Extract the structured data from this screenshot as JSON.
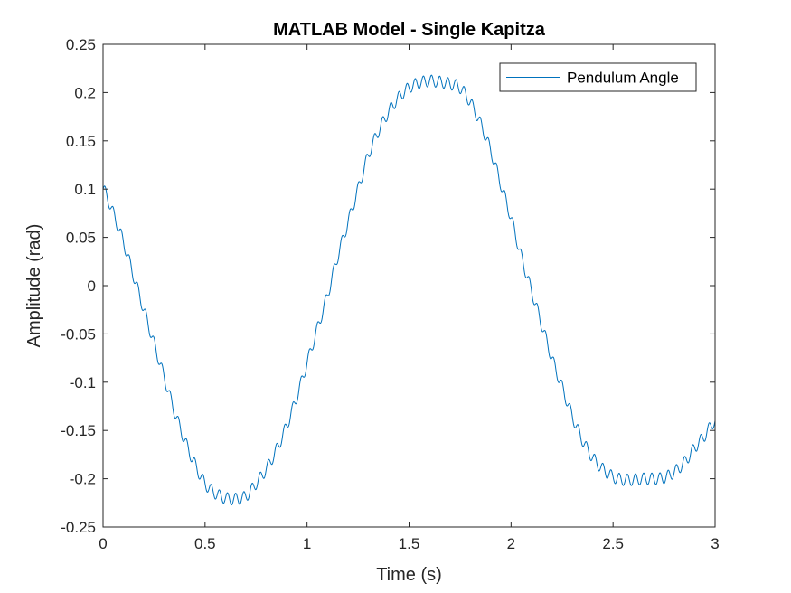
{
  "chart_data": {
    "type": "line",
    "title": "MATLAB Model - Single Kapitza",
    "xlabel": "Time (s)",
    "ylabel": "Amplitude (rad)",
    "xlim": [
      0,
      3
    ],
    "ylim": [
      -0.25,
      0.25
    ],
    "xticks": [
      0,
      0.5,
      1,
      1.5,
      2,
      2.5,
      3
    ],
    "xtick_labels": [
      "0",
      "0.5",
      "1",
      "1.5",
      "2",
      "2.5",
      "3"
    ],
    "yticks": [
      -0.25,
      -0.2,
      -0.15,
      -0.1,
      -0.05,
      0,
      0.05,
      0.1,
      0.15,
      0.2,
      0.25
    ],
    "ytick_labels": [
      "-0.25",
      "-0.2",
      "-0.15",
      "-0.1",
      "-0.05",
      "0",
      "0.05",
      "0.1",
      "0.15",
      "0.2",
      "0.25"
    ],
    "grid": false,
    "legend_position": "top-right",
    "series": [
      {
        "name": "Pendulum Angle",
        "color": "#0072BD",
        "x": [
          0,
          0.05,
          0.1,
          0.15,
          0.2,
          0.25,
          0.3,
          0.35,
          0.4,
          0.45,
          0.5,
          0.55,
          0.6,
          0.65,
          0.7,
          0.75,
          0.8,
          0.85,
          0.9,
          0.95,
          1.0,
          1.05,
          1.1,
          1.15,
          1.2,
          1.25,
          1.3,
          1.35,
          1.4,
          1.45,
          1.5,
          1.55,
          1.6,
          1.65,
          1.7,
          1.75,
          1.8,
          1.85,
          1.9,
          1.95,
          2.0,
          2.05,
          2.1,
          2.15,
          2.2,
          2.25,
          2.3,
          2.35,
          2.4,
          2.45,
          2.5,
          2.55,
          2.6,
          2.65,
          2.7,
          2.75,
          2.8,
          2.85,
          2.9,
          2.95,
          3.0
        ],
        "y": [
          0.1,
          0.075,
          0.045,
          0.01,
          -0.025,
          -0.06,
          -0.095,
          -0.13,
          -0.16,
          -0.185,
          -0.205,
          -0.215,
          -0.22,
          -0.221,
          -0.218,
          -0.205,
          -0.19,
          -0.17,
          -0.145,
          -0.115,
          -0.08,
          -0.045,
          -0.01,
          0.03,
          0.065,
          0.1,
          0.135,
          0.16,
          0.18,
          0.195,
          0.205,
          0.21,
          0.212,
          0.211,
          0.209,
          0.205,
          0.19,
          0.168,
          0.14,
          0.105,
          0.07,
          0.03,
          -0.005,
          -0.04,
          -0.075,
          -0.105,
          -0.135,
          -0.16,
          -0.178,
          -0.19,
          -0.198,
          -0.201,
          -0.201,
          -0.2,
          -0.2,
          -0.199,
          -0.193,
          -0.183,
          -0.168,
          -0.155,
          -0.14
        ],
        "oscillation": {
          "frequency_hz": 25,
          "amplitude_rad": 0.006
        }
      }
    ]
  }
}
